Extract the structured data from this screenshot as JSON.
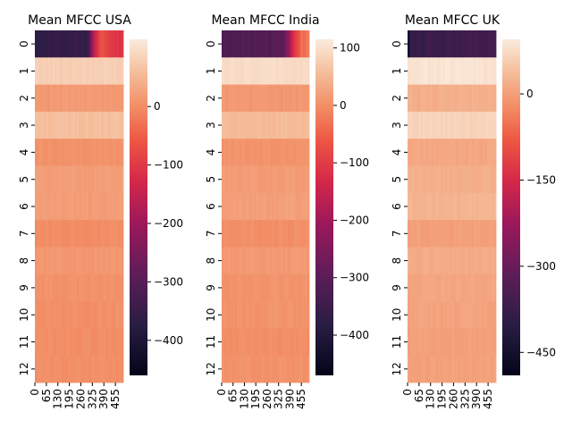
{
  "chart_data": [
    {
      "type": "heatmap",
      "title": "Mean MFCC USA",
      "y_tick_labels": [
        "0",
        "1",
        "2",
        "3",
        "4",
        "5",
        "6",
        "7",
        "8",
        "9",
        "10",
        "11",
        "12"
      ],
      "x_tick_labels": [
        "0",
        "65",
        "130",
        "195",
        "260",
        "325",
        "390",
        "455"
      ],
      "x_range": [
        0,
        500
      ],
      "colorbar": {
        "vmin": -460,
        "vmax": 115,
        "ticks": [
          0,
          -100,
          -200,
          -300,
          -400
        ],
        "tick_labels": [
          "0",
          "−100",
          "−200",
          "−300",
          "−400"
        ]
      },
      "row_means": [
        -340,
        80,
        15,
        60,
        5,
        20,
        18,
        0,
        12,
        5,
        2,
        0,
        2
      ],
      "row0_profile": [
        [
          0,
          -360
        ],
        [
          300,
          -355
        ],
        [
          330,
          -170
        ],
        [
          380,
          -60
        ],
        [
          420,
          -100
        ],
        [
          500,
          -110
        ]
      ]
    },
    {
      "type": "heatmap",
      "title": "Mean MFCC India",
      "y_tick_labels": [
        "0",
        "1",
        "2",
        "3",
        "4",
        "5",
        "6",
        "7",
        "8",
        "9",
        "10",
        "11",
        "12"
      ],
      "x_tick_labels": [
        "0",
        "65",
        "130",
        "195",
        "260",
        "325",
        "390",
        "455"
      ],
      "x_range": [
        0,
        500
      ],
      "colorbar": {
        "vmin": -470,
        "vmax": 115,
        "ticks": [
          100,
          0,
          -100,
          -200,
          -300,
          -400
        ],
        "tick_labels": [
          "100",
          "0",
          "−100",
          "−200",
          "−300",
          "−400"
        ]
      },
      "row_means": [
        -300,
        95,
        10,
        55,
        5,
        15,
        20,
        0,
        12,
        5,
        5,
        0,
        3
      ],
      "row0_profile": [
        [
          0,
          -320
        ],
        [
          350,
          -310
        ],
        [
          400,
          -150
        ],
        [
          450,
          -40
        ],
        [
          500,
          -20
        ]
      ]
    },
    {
      "type": "heatmap",
      "title": "Mean MFCC UK",
      "y_tick_labels": [
        "0",
        "1",
        "2",
        "3",
        "4",
        "5",
        "6",
        "7",
        "8",
        "9",
        "10",
        "11",
        "12"
      ],
      "x_tick_labels": [
        "0",
        "65",
        "130",
        "195",
        "260",
        "325",
        "390",
        "455"
      ],
      "x_range": [
        0,
        500
      ],
      "colorbar": {
        "vmin": -490,
        "vmax": 95,
        "ticks": [
          0,
          -150,
          -300,
          -450
        ],
        "tick_labels": [
          "0",
          "−150",
          "−300",
          "−450"
        ]
      },
      "row_means": [
        -350,
        85,
        20,
        65,
        10,
        20,
        25,
        0,
        15,
        8,
        5,
        0,
        2
      ],
      "row0_profile": [
        [
          0,
          -470
        ],
        [
          20,
          -380
        ],
        [
          500,
          -360
        ]
      ]
    }
  ]
}
